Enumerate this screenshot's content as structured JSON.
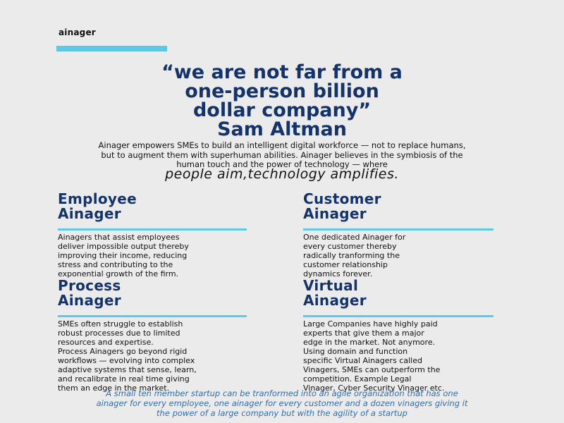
{
  "brand": {
    "name": "ainager",
    "accent_color": "#5ec8e6"
  },
  "quote": {
    "lines": [
      "“we are not far from a",
      "one-person billion",
      "dollar company”",
      "Sam Altman"
    ],
    "color": "#14336b"
  },
  "intro": {
    "lines": [
      "Ainager empowers SMEs to build an intelligent digital workforce — not to replace humans,",
      "but to augment them with superhuman abilities. Ainager believes in the symbiosis of the",
      "human touch and the power of technology — where"
    ],
    "tagline": "people aim,technology amplifies."
  },
  "cards": [
    {
      "title": [
        "Employee",
        "Ainager"
      ],
      "body": [
        "Ainagers that assist employees",
        "deliver impossible output thereby",
        "improving their income, reducing",
        "stress and contributing to the",
        "exponential growth of the firm."
      ]
    },
    {
      "title": [
        "Customer",
        "Ainager"
      ],
      "body": [
        "One dedicated Ainager for",
        "every customer thereby",
        "radically tranforming the",
        "customer relationship",
        "dynamics forever."
      ]
    },
    {
      "title": [
        "Process",
        "Ainager"
      ],
      "body": [
        "SMEs often struggle to establish",
        "robust processes due to limited",
        "resources and expertise.",
        "Process Ainagers go beyond rigid",
        "workflows — evolving into complex",
        "adaptive systems that sense, learn,",
        "and recalibrate in real time giving",
        "them an edge in the market."
      ]
    },
    {
      "title": [
        "Virtual",
        "Ainager"
      ],
      "body": [
        "Large Companies have highly paid",
        "experts that give them a major",
        "edge in the market. Not anymore.",
        "Using domain and function",
        "specific Virtual Ainagers called",
        "Vinagers, SMEs can outperform the",
        "competition. Example Legal",
        "Vinager, Cyber Security Vinager etc."
      ]
    }
  ],
  "footer": {
    "lines": [
      "A small ten member startup can be tranformed into an agile organization that has one",
      "ainager for every employee, one ainager for every customer and a dozen vinagers giving it",
      "the power of a large company but with the agility of a startup"
    ],
    "color": "#2f6fb0"
  }
}
